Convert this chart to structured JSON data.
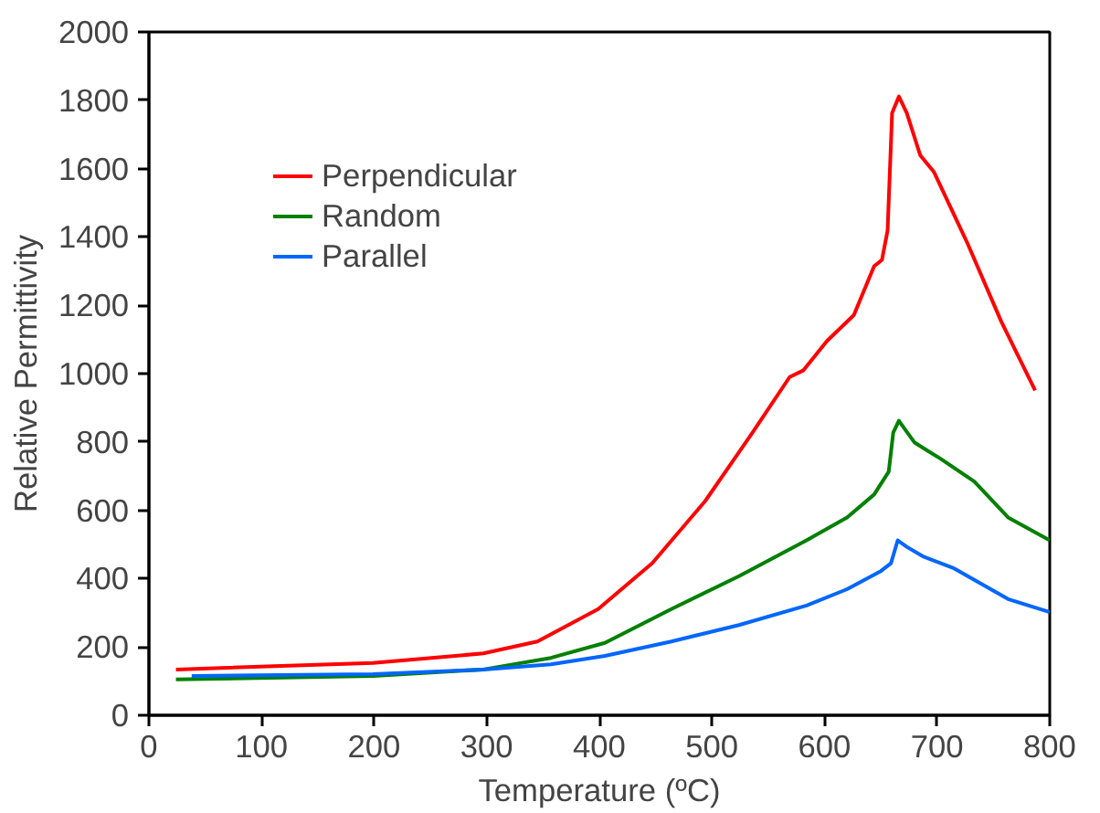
{
  "chart_data": {
    "type": "line",
    "xlabel": "Temperature (ºC)",
    "ylabel": "Relative Permittivity",
    "xlim": [
      0,
      800
    ],
    "xticks": [
      0,
      100,
      200,
      300,
      400,
      500,
      600,
      700,
      800
    ],
    "ylim": [
      0,
      2000
    ],
    "yticks": [
      0,
      200,
      400,
      600,
      800,
      1000,
      1200,
      1400,
      1600,
      1800,
      2000
    ],
    "grid": false,
    "legend": "top left",
    "line_style": "solid",
    "marker": "none",
    "series": [
      {
        "name": "Perpendicular",
        "color": "#ff0000",
        "x": [
          24,
          199,
          297,
          345,
          399,
          447,
          494,
          536,
          569,
          581,
          602,
          626,
          644,
          651,
          656,
          660,
          666,
          673,
          685,
          697,
          727,
          757,
          787
        ],
        "values": [
          134,
          153,
          181,
          216,
          311,
          445,
          627,
          827,
          990,
          1009,
          1095,
          1171,
          1314,
          1333,
          1419,
          1763,
          1811,
          1763,
          1639,
          1591,
          1381,
          1152,
          951
        ]
      },
      {
        "name": "Random",
        "color": "#008000",
        "x": [
          24,
          199,
          297,
          357,
          405,
          464,
          524,
          584,
          620,
          644,
          657,
          661,
          666,
          680,
          703,
          733,
          763,
          800
        ],
        "values": [
          105,
          115,
          134,
          168,
          212,
          311,
          407,
          512,
          579,
          646,
          713,
          827,
          862,
          798,
          751,
          684,
          579,
          512
        ]
      },
      {
        "name": "Parallel",
        "color": "#0066ff",
        "x": [
          38,
          199,
          297,
          357,
          405,
          464,
          524,
          584,
          620,
          650,
          659,
          665,
          673,
          688,
          715,
          763,
          800
        ],
        "values": [
          115,
          120,
          134,
          149,
          174,
          216,
          264,
          321,
          369,
          422,
          445,
          512,
          493,
          464,
          430,
          340,
          302
        ]
      }
    ]
  }
}
